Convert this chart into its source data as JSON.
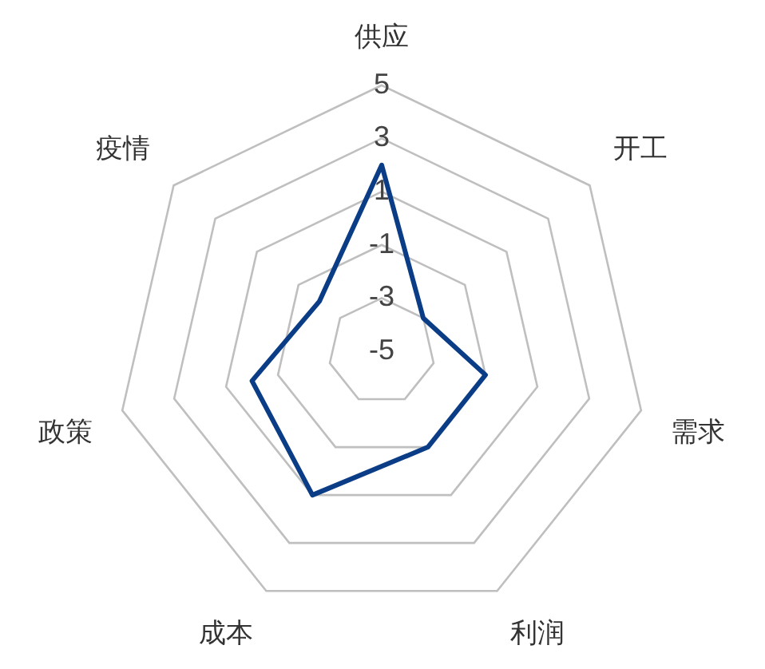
{
  "chart_data": {
    "type": "radar",
    "categories": [
      "供应",
      "开工",
      "需求",
      "利润",
      "成本",
      "政策",
      "疫情"
    ],
    "series": [
      {
        "color": "#0b3d87",
        "values": [
          2,
          -3,
          -1,
          -1,
          1,
          0,
          -2
        ]
      }
    ],
    "ylim": [
      -5,
      5
    ],
    "yticks": [
      -5,
      -3,
      -1,
      1,
      3,
      5
    ],
    "grid": true,
    "legend": false,
    "marker": "none"
  }
}
